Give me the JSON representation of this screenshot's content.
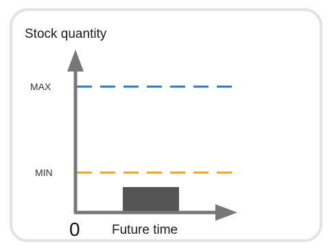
{
  "diagram": {
    "y_axis_title": "Stock quantity",
    "x_axis_title": "Future time",
    "origin": "0",
    "max_label": "MAX",
    "min_label": "MIN",
    "colors": {
      "max_line": "#2b78c2",
      "min_line": "#f0a020",
      "axis": "#777777",
      "stock_block": "#555555",
      "card_border": "#e3e3e3"
    }
  }
}
